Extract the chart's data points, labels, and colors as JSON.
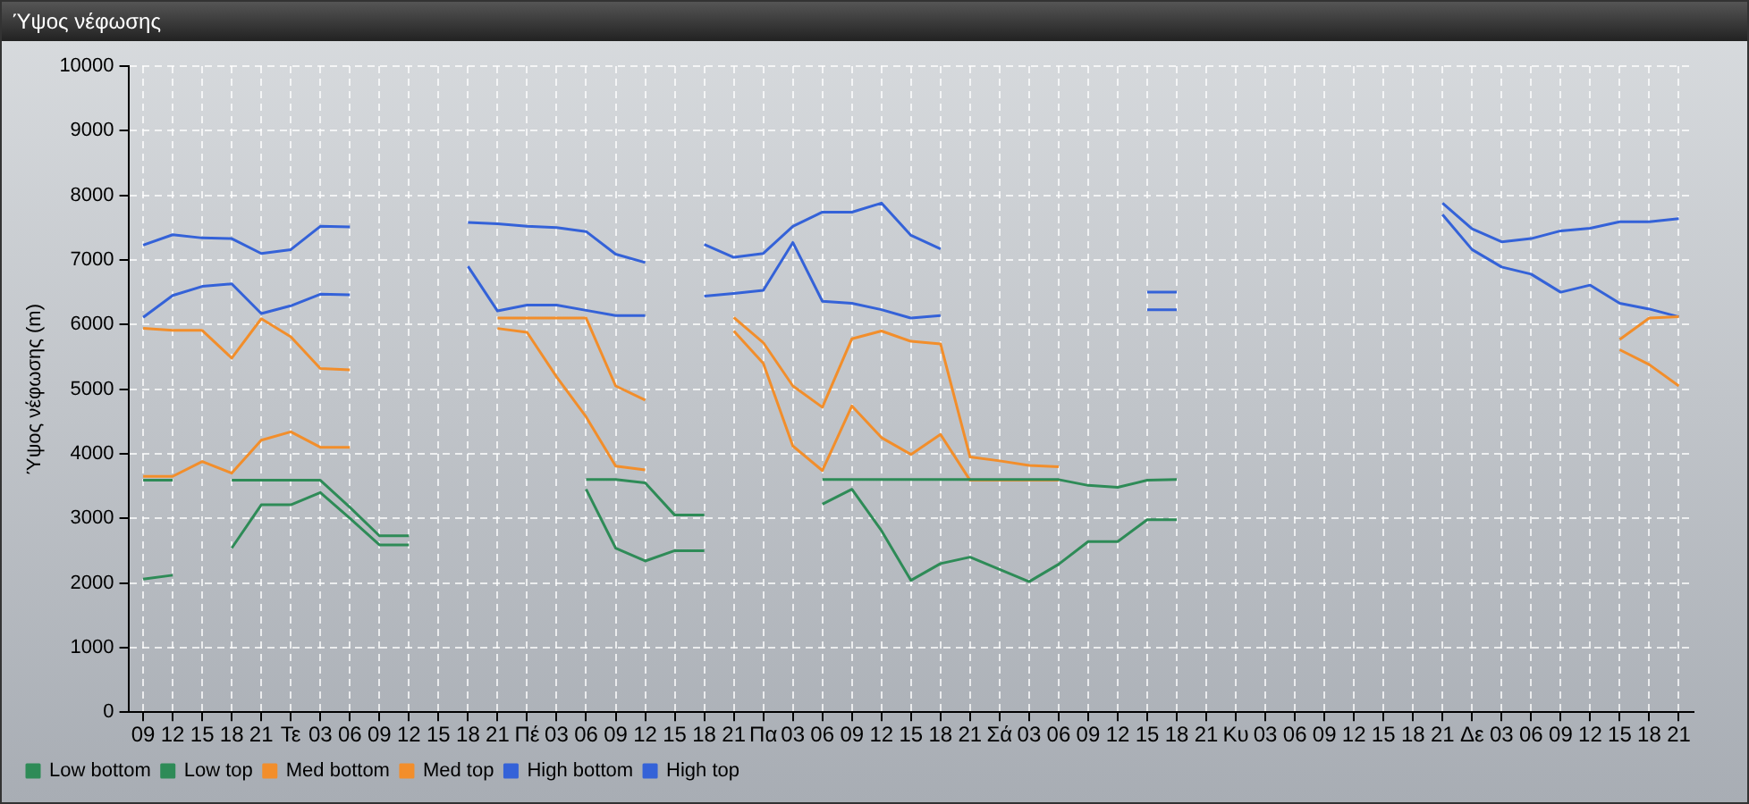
{
  "chart_data": {
    "type": "line",
    "title": "Ύψος νέφωσης",
    "ylabel": "Ύψος νέφωσης (m)",
    "categories": [
      "09",
      "12",
      "15",
      "18",
      "21",
      "Τε",
      "03",
      "06",
      "09",
      "12",
      "15",
      "18",
      "21",
      "Πέ",
      "03",
      "06",
      "09",
      "12",
      "15",
      "18",
      "21",
      "Πα",
      "03",
      "06",
      "09",
      "12",
      "15",
      "18",
      "21",
      "Σά",
      "03",
      "06",
      "09",
      "12",
      "15",
      "18",
      "21",
      "Κυ",
      "03",
      "06",
      "09",
      "12",
      "15",
      "18",
      "21",
      "Δε",
      "03",
      "06",
      "09",
      "12",
      "15",
      "18",
      "21"
    ],
    "series": [
      {
        "name": "Low bottom",
        "color": "#2e8b57",
        "values": [
          2060,
          2120,
          null,
          2540,
          3210,
          3210,
          3400,
          3000,
          2590,
          2590,
          null,
          null,
          null,
          null,
          null,
          3450,
          2540,
          2340,
          2500,
          2500,
          null,
          null,
          null,
          3220,
          3450,
          2810,
          2040,
          2300,
          2400,
          2210,
          2020,
          2290,
          2640,
          2640,
          2980,
          2980,
          null,
          null,
          null,
          null,
          null,
          null,
          null,
          null,
          null,
          null,
          null,
          null,
          null,
          null,
          null,
          null,
          null
        ]
      },
      {
        "name": "Low top",
        "color": "#2e8b57",
        "values": [
          3590,
          3590,
          null,
          3590,
          3590,
          3590,
          3590,
          3170,
          2730,
          2730,
          null,
          null,
          null,
          null,
          null,
          3600,
          3600,
          3550,
          3050,
          3050,
          null,
          null,
          null,
          3600,
          3600,
          3600,
          3600,
          3600,
          3600,
          3600,
          3600,
          3600,
          3510,
          3480,
          3590,
          3600,
          null,
          null,
          null,
          null,
          null,
          null,
          null,
          null,
          null,
          null,
          null,
          null,
          null,
          null,
          null,
          null,
          null
        ]
      },
      {
        "name": "Med bottom",
        "color": "#f28e2b",
        "values": [
          3650,
          3650,
          3880,
          3700,
          4210,
          4340,
          4100,
          4100,
          null,
          null,
          null,
          null,
          5940,
          5880,
          5190,
          4570,
          3810,
          3750,
          null,
          null,
          5900,
          5400,
          4120,
          3740,
          4740,
          4250,
          3990,
          4300,
          3590,
          3590,
          3590,
          3590,
          null,
          null,
          null,
          null,
          null,
          null,
          null,
          null,
          null,
          null,
          null,
          null,
          null,
          null,
          null,
          null,
          null,
          null,
          5610,
          5380,
          5050
        ]
      },
      {
        "name": "Med top",
        "color": "#f28e2b",
        "values": [
          5940,
          5910,
          5910,
          5480,
          6090,
          5810,
          5320,
          5300,
          null,
          null,
          null,
          null,
          6100,
          6100,
          6100,
          6100,
          5050,
          4830,
          null,
          null,
          6110,
          5720,
          5050,
          4720,
          5780,
          5900,
          5740,
          5700,
          3950,
          3890,
          3820,
          3800,
          null,
          null,
          null,
          null,
          null,
          null,
          null,
          null,
          null,
          null,
          null,
          null,
          null,
          null,
          null,
          null,
          null,
          null,
          5770,
          6100,
          6120
        ]
      },
      {
        "name": "High bottom",
        "color": "#3462d8",
        "values": [
          6110,
          6450,
          6590,
          6630,
          6170,
          6290,
          6470,
          6460,
          null,
          null,
          null,
          6900,
          6210,
          6300,
          6300,
          6220,
          6140,
          6140,
          null,
          6440,
          6480,
          6530,
          7270,
          6360,
          6330,
          6230,
          6100,
          6140,
          null,
          null,
          null,
          null,
          null,
          null,
          6230,
          6230,
          null,
          null,
          null,
          null,
          null,
          null,
          null,
          null,
          7700,
          7160,
          6890,
          6780,
          6500,
          6610,
          6330,
          6240,
          6120
        ]
      },
      {
        "name": "High top",
        "color": "#3462d8",
        "values": [
          7230,
          7390,
          7340,
          7330,
          7100,
          7160,
          7520,
          7510,
          null,
          null,
          null,
          7580,
          7560,
          7520,
          7500,
          7440,
          7090,
          6960,
          null,
          7240,
          7040,
          7100,
          7520,
          7740,
          7740,
          7880,
          7380,
          7170,
          null,
          null,
          null,
          null,
          null,
          null,
          6500,
          6500,
          null,
          null,
          null,
          null,
          null,
          null,
          null,
          null,
          7880,
          7480,
          7280,
          7330,
          7450,
          7490,
          7590,
          7590,
          7640
        ]
      }
    ],
    "ylim": [
      0,
      10000
    ],
    "yticks": [
      0,
      1000,
      2000,
      3000,
      4000,
      5000,
      6000,
      7000,
      8000,
      9000,
      10000
    ],
    "grid": true,
    "legend": "bottom left"
  }
}
